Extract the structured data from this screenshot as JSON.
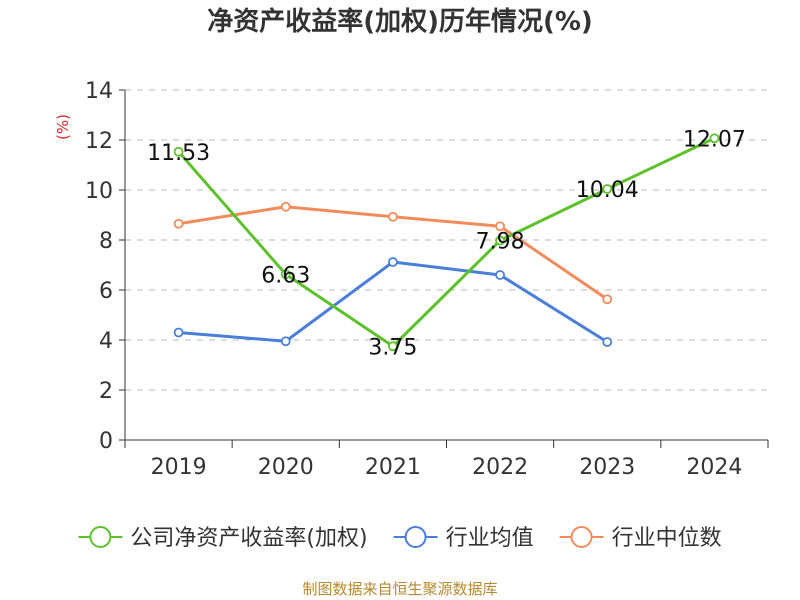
{
  "chart_data": {
    "type": "line",
    "title": "净资产收益率(加权)历年情况(%)",
    "ylabel": "(%)",
    "xlabel": "",
    "categories": [
      "2019",
      "2020",
      "2021",
      "2022",
      "2023",
      "2024"
    ],
    "ylim": [
      0,
      14
    ],
    "yticks": [
      0,
      2,
      4,
      6,
      8,
      10,
      12,
      14
    ],
    "grid": true,
    "legend_position": "bottom",
    "series": [
      {
        "name": "公司净资产收益率(加权)",
        "color": "#5cc12a",
        "values": [
          11.53,
          6.63,
          3.75,
          7.98,
          10.04,
          12.07
        ],
        "labels": [
          "11.53",
          "6.63",
          "3.75",
          "7.98",
          "10.04",
          "12.07"
        ]
      },
      {
        "name": "行业均值",
        "color": "#4a7fd9",
        "values": [
          4.3,
          3.95,
          7.12,
          6.6,
          3.92,
          null
        ]
      },
      {
        "name": "行业中位数",
        "color": "#f08c5a",
        "values": [
          8.65,
          9.33,
          8.93,
          8.55,
          5.63,
          null
        ]
      }
    ]
  },
  "source": "制图数据来自恒生聚源数据库"
}
